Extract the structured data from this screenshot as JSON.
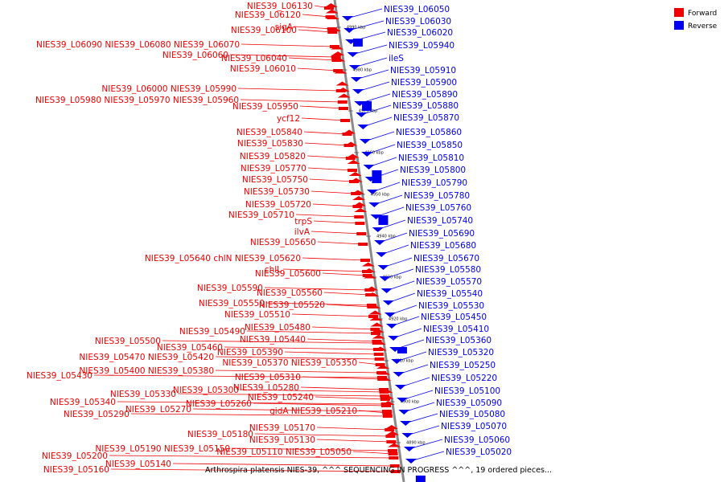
{
  "caption": "Arthrospira platensis NIES-39, ^^^ SEQUENCING IN PROGRESS ^^^, 19 ordered pieces...",
  "colors": {
    "forward": "#ee0000",
    "reverse": "#0000ee",
    "axis": "#888888"
  },
  "legend": [
    {
      "key": "forward",
      "label": "Forward"
    },
    {
      "key": "reverse",
      "label": "Reverse"
    }
  ],
  "axis_ticks": [
    "4990 kbp",
    "4980 kbp",
    "4970 kbp",
    "4960 kbp",
    "4950 kbp",
    "4940 kbp",
    "4930 kbp",
    "4920 kbp",
    "4910 kbp",
    "4900 kbp",
    "4890 kbp"
  ],
  "forward_labels": [
    [
      "NIES39_L06130"
    ],
    [
      "NIES39_L06120"
    ],
    [
      "sigA"
    ],
    [
      "NIES39_L06100"
    ],
    [
      "NIES39_L06090",
      "NIES39_L06080",
      "NIES39_L06070"
    ],
    [
      "NIES39_L06060"
    ],
    [
      "NIES39_L06040"
    ],
    [
      "NIES39_L06010"
    ],
    [
      "NIES39_L06000",
      "NIES39_L05990"
    ],
    [
      "NIES39_L05980",
      "NIES39_L05970",
      "NIES39_L05960"
    ],
    [
      "NIES39_L05950"
    ],
    [
      "ycf12"
    ],
    [
      "NIES39_L05840"
    ],
    [
      "NIES39_L05830"
    ],
    [
      "NIES39_L05820"
    ],
    [
      "NIES39_L05770"
    ],
    [
      "NIES39_L05750"
    ],
    [
      "NIES39_L05730"
    ],
    [
      "NIES39_L05720"
    ],
    [
      "NIES39_L05710"
    ],
    [
      "trpS"
    ],
    [
      "ilvA"
    ],
    [
      "NIES39_L05650"
    ],
    [
      "NIES39_L05640",
      "chlN",
      "NIES39_L05620"
    ],
    [
      "chlL"
    ],
    [
      "NIES39_L05600"
    ],
    [
      "NIES39_L05590"
    ],
    [
      "NIES39_L05560"
    ],
    [
      "NIES39_L05550"
    ],
    [
      "NIES39_L05520"
    ],
    [
      "NIES39_L05510"
    ],
    [
      "NIES39_L05480"
    ],
    [
      "NIES39_L05490"
    ],
    [
      "NIES39_L05440"
    ],
    [
      "NIES39_L05500"
    ],
    [
      "NIES39_L05460"
    ],
    [
      "NIES39_L05390"
    ],
    [
      "NIES39_L05470",
      "NIES39_L05420"
    ],
    [
      "NIES39_L05370",
      "NIES39_L05350"
    ],
    [
      "NIES39_L05400",
      "NIES39_L05380"
    ],
    [
      "NIES39_L05430"
    ],
    [
      "NIES39_L05310"
    ],
    [
      "NIES39_L05280"
    ],
    [
      "NIES39_L05300"
    ],
    [
      "NIES39_L05330"
    ],
    [
      "NIES39_L05240"
    ],
    [
      "NIES39_L05340"
    ],
    [
      "NIES39_L05260"
    ],
    [
      "NIES39_L05270"
    ],
    [
      "gidA",
      "NIES39_L05210"
    ],
    [
      "NIES39_L05290"
    ],
    [
      "NIES39_L05170"
    ],
    [
      "NIES39_L05180"
    ],
    [
      "NIES39_L05130"
    ],
    [
      "NIES39_L05190",
      "NIES39_L05150"
    ],
    [
      "NIES39_L05200"
    ],
    [
      "NIES39_L05110",
      "NIES39_L05050"
    ],
    [
      "NIES39_L05140"
    ],
    [
      "NIES39_L05160"
    ]
  ],
  "reverse_labels": [
    "NIES39_L06050",
    "NIES39_L06030",
    "NIES39_L06020",
    "NIES39_L05940",
    "ileS",
    "NIES39_L05910",
    "NIES39_L05900",
    "NIES39_L05890",
    "NIES39_L05880",
    "NIES39_L05870",
    "NIES39_L05860",
    "NIES39_L05850",
    "NIES39_L05810",
    "NIES39_L05800",
    "NIES39_L05790",
    "NIES39_L05780",
    "NIES39_L05760",
    "NIES39_L05740",
    "NIES39_L05690",
    "NIES39_L05680",
    "NIES39_L05670",
    "NIES39_L05580",
    "NIES39_L05570",
    "NIES39_L05540",
    "NIES39_L05530",
    "NIES39_L05450",
    "NIES39_L05410",
    "NIES39_L05360",
    "NIES39_L05320",
    "NIES39_L05250",
    "NIES39_L05220",
    "NIES39_L05100",
    "NIES39_L05090",
    "NIES39_L05080",
    "NIES39_L05070",
    "NIES39_L05060",
    "NIES39_L05020"
  ]
}
